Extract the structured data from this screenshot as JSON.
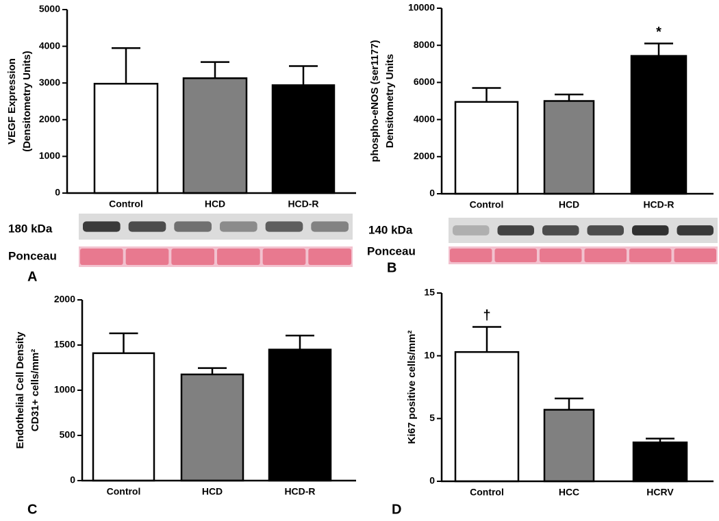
{
  "chart_data": [
    {
      "type": "bar",
      "ylabel": [
        "VEGF Expression",
        "(Densitometry Units)"
      ],
      "categories": [
        "Control",
        "HCD",
        "HCD-R"
      ],
      "values": [
        2980,
        3130,
        2940
      ],
      "errors": [
        970,
        440,
        520
      ],
      "colors": [
        "#ffffff",
        "#808080",
        "#000000"
      ],
      "ylim": [
        0,
        5000
      ],
      "yticks": [
        0,
        1000,
        2000,
        3000,
        4000,
        5000
      ],
      "blot_labels": [
        "180 kDa",
        "Ponceau"
      ],
      "panel_label": "A"
    },
    {
      "type": "bar",
      "ylabel": [
        "phospho-eNOS (ser1177)",
        "Densitometry Units"
      ],
      "categories": [
        "Control",
        "HCD",
        "HCD-R"
      ],
      "values": [
        4950,
        5000,
        7430
      ],
      "errors": [
        750,
        350,
        670
      ],
      "colors": [
        "#ffffff",
        "#808080",
        "#000000"
      ],
      "ylim": [
        0,
        10000
      ],
      "yticks": [
        0,
        2000,
        4000,
        6000,
        8000,
        10000
      ],
      "annotation": "*",
      "blot_labels": [
        "140 kDa",
        "Ponceau"
      ],
      "panel_label": "B"
    },
    {
      "type": "bar",
      "ylabel": [
        "Endothelial Cell Density",
        "CD31+ cells/mm²"
      ],
      "categories": [
        "Control",
        "HCD",
        "HCD-R"
      ],
      "values": [
        1410,
        1175,
        1450
      ],
      "errors": [
        220,
        70,
        155
      ],
      "colors": [
        "#ffffff",
        "#808080",
        "#000000"
      ],
      "ylim": [
        0,
        2000
      ],
      "yticks": [
        0,
        500,
        1000,
        1500,
        2000
      ],
      "panel_label": "C"
    },
    {
      "type": "bar",
      "ylabel": [
        "Ki67 positive cells/mm²"
      ],
      "categories": [
        "Control",
        "HCC",
        "HCRV"
      ],
      "values": [
        10.3,
        5.7,
        3.1
      ],
      "errors": [
        2.0,
        0.9,
        0.3
      ],
      "colors": [
        "#ffffff",
        "#808080",
        "#000000"
      ],
      "ylim": [
        0,
        15
      ],
      "yticks": [
        0,
        5,
        10,
        15
      ],
      "annotation": "†",
      "panel_label": "D"
    }
  ]
}
